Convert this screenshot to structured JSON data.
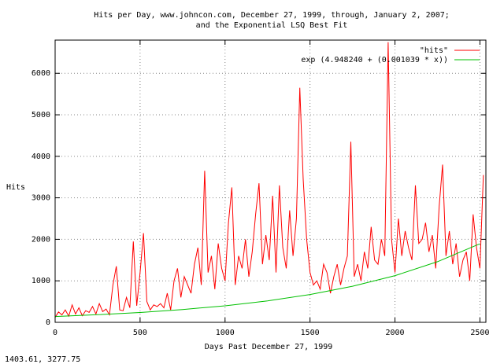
{
  "chart_data": {
    "type": "line",
    "title_lines": [
      "Hits per Day, www.johncon.com, December 27, 1999, through, January 2, 2007;",
      "and the Exponential LSQ Best Fit"
    ],
    "xlabel": "Days Past December 27, 1999",
    "ylabel": "Hits",
    "status": "1403.61,  3277.75",
    "xlim": [
      0,
      2535
    ],
    "ylim": [
      0,
      6800
    ],
    "xticks": [
      0,
      500,
      1000,
      1500,
      2000,
      2500
    ],
    "yticks": [
      0,
      1000,
      2000,
      3000,
      4000,
      5000,
      6000
    ],
    "grid": true,
    "legend": "top-right",
    "series": [
      {
        "name": "\"hits\"",
        "color": "#ff0000",
        "x": [
          0,
          20,
          40,
          60,
          80,
          100,
          120,
          140,
          160,
          180,
          200,
          220,
          240,
          260,
          280,
          300,
          320,
          340,
          360,
          380,
          400,
          420,
          440,
          460,
          480,
          500,
          520,
          540,
          560,
          580,
          600,
          620,
          640,
          660,
          680,
          700,
          720,
          740,
          760,
          780,
          800,
          820,
          840,
          860,
          880,
          900,
          920,
          940,
          960,
          980,
          1000,
          1020,
          1040,
          1060,
          1080,
          1100,
          1120,
          1140,
          1160,
          1180,
          1200,
          1220,
          1240,
          1260,
          1280,
          1300,
          1320,
          1340,
          1360,
          1380,
          1400,
          1420,
          1440,
          1460,
          1480,
          1500,
          1520,
          1540,
          1560,
          1580,
          1600,
          1620,
          1640,
          1660,
          1680,
          1700,
          1720,
          1740,
          1760,
          1780,
          1800,
          1820,
          1840,
          1860,
          1880,
          1900,
          1920,
          1940,
          1960,
          1980,
          2000,
          2020,
          2040,
          2060,
          2080,
          2100,
          2120,
          2140,
          2160,
          2180,
          2200,
          2220,
          2240,
          2260,
          2280,
          2300,
          2320,
          2340,
          2360,
          2380,
          2400,
          2420,
          2440,
          2460,
          2480,
          2500,
          2520
        ],
        "values": [
          120,
          250,
          180,
          300,
          150,
          420,
          200,
          350,
          160,
          280,
          240,
          380,
          200,
          450,
          260,
          320,
          180,
          900,
          1350,
          300,
          280,
          600,
          350,
          1950,
          400,
          1200,
          2150,
          500,
          300,
          420,
          380,
          450,
          350,
          700,
          300,
          1000,
          1300,
          600,
          1100,
          900,
          700,
          1400,
          1800,
          900,
          3650,
          1200,
          1600,
          800,
          1900,
          1300,
          1000,
          2400,
          3250,
          900,
          1600,
          1300,
          2000,
          1100,
          1700,
          2600,
          3350,
          1400,
          2100,
          1500,
          3050,
          1200,
          3300,
          1800,
          1300,
          2700,
          1600,
          2500,
          5650,
          3450,
          2000,
          1200,
          900,
          1000,
          800,
          1400,
          1200,
          700,
          1100,
          1400,
          900,
          1300,
          1600,
          4350,
          1100,
          1400,
          1000,
          1700,
          1300,
          2300,
          1500,
          1400,
          2000,
          1600,
          6750,
          2000,
          1200,
          2500,
          1600,
          2200,
          1800,
          1500,
          3300,
          1900,
          2000,
          2400,
          1700,
          2100,
          1300,
          2800,
          3800,
          1600,
          2200,
          1400,
          1900,
          1100,
          1500,
          1700,
          1000,
          2600,
          1800,
          1300,
          3550
        ]
      },
      {
        "name": "exp (4.948240 + (0.001039 * x))",
        "color": "#00c000",
        "x": [
          0,
          250,
          500,
          750,
          1000,
          1250,
          1500,
          1750,
          2000,
          2250,
          2500
        ],
        "values": [
          141,
          183,
          237,
          308,
          398,
          517,
          670,
          869,
          1126,
          1461,
          1893
        ]
      }
    ]
  }
}
